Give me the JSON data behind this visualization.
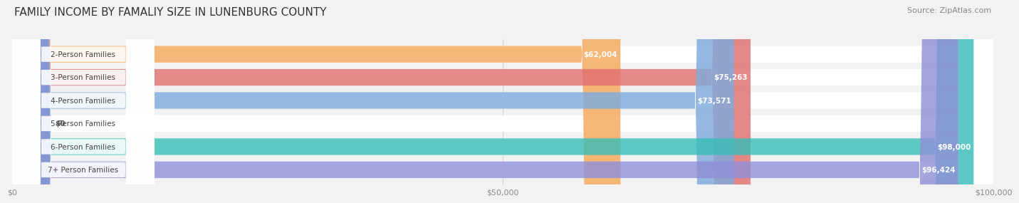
{
  "title": "FAMILY INCOME BY FAMALIY SIZE IN LUNENBURG COUNTY",
  "source": "Source: ZipAtlas.com",
  "categories": [
    "2-Person Families",
    "3-Person Families",
    "4-Person Families",
    "5-Person Families",
    "6-Person Families",
    "7+ Person Families"
  ],
  "values": [
    62004,
    75263,
    73571,
    0,
    98000,
    96424
  ],
  "bar_colors": [
    "#f5a85a",
    "#e07070",
    "#7eaadc",
    "#c9a8e0",
    "#3bbcb8",
    "#9090d8"
  ],
  "xlim": [
    0,
    100000
  ],
  "xticks": [
    0,
    50000,
    100000
  ],
  "xticklabels": [
    "$0",
    "$50,000",
    "$100,000"
  ],
  "value_labels": [
    "$62,004",
    "$75,263",
    "$73,571",
    "$0",
    "$98,000",
    "$96,424"
  ],
  "title_fontsize": 11,
  "source_fontsize": 8,
  "bar_label_fontsize": 7.5,
  "value_label_fontsize": 7.5,
  "background_color": "#f2f2f2"
}
